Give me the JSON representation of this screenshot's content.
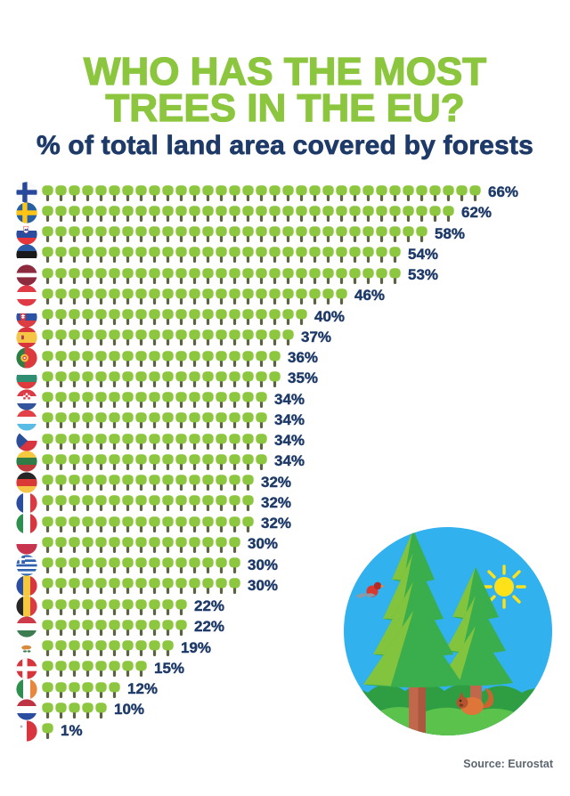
{
  "title": {
    "line1": "WHO HAS THE MOST",
    "line2": "TREES IN THE EU?"
  },
  "subtitle": "% of total land area covered by forests",
  "source": "Source: Eurostat",
  "colors": {
    "green": "#8CC63E",
    "navy": "#1E3A68",
    "tree_canopy": "#8DC63F",
    "tree_trunk": "#5D6243",
    "sky": "#31B1EE",
    "fir_green": "#3AAE4C",
    "fir_light": "#8CC63E",
    "trunk_brown": "#C1684C",
    "trunk_brown_dark": "#AC5740",
    "bush_green": "#2F9E43",
    "grass_green": "#5BC24C",
    "sun_yellow": "#FFE11A",
    "bird_red": "#D93A2F",
    "squirrel_orange": "#DD7638"
  },
  "chart_data": {
    "type": "pictogram-bar",
    "title": "WHO HAS THE MOST TREES IN THE EU?",
    "subtitle": "% of total land area covered by forests",
    "unit": "%",
    "percent_per_tree_icon": 2,
    "source": "Source: Eurostat",
    "categories": [
      "Finland",
      "Sweden",
      "Slovenia",
      "Estonia",
      "Latvia",
      "Austria",
      "Slovakia",
      "Spain",
      "Portugal",
      "Bulgaria",
      "Croatia",
      "Luxembourg",
      "Czechia",
      "Lithuania",
      "Germany",
      "France",
      "Italy",
      "Poland",
      "Greece",
      "Romania",
      "Belgium",
      "Hungary",
      "Cyprus",
      "Denmark",
      "Ireland",
      "Netherlands",
      "Malta"
    ],
    "values": [
      66,
      62,
      58,
      54,
      53,
      46,
      40,
      37,
      36,
      35,
      34,
      34,
      34,
      34,
      32,
      32,
      32,
      30,
      30,
      30,
      22,
      22,
      19,
      15,
      12,
      10,
      1
    ]
  },
  "countries": [
    {
      "name": "Finland",
      "value": 66,
      "flag_icon": "flag-finland-icon",
      "flag": {
        "pattern": "nordic",
        "colors": [
          "#F7F9FB",
          "#27489C"
        ]
      }
    },
    {
      "name": "Sweden",
      "value": 62,
      "flag_icon": "flag-sweden-icon",
      "flag": {
        "pattern": "nordic",
        "colors": [
          "#2660A4",
          "#FEC514"
        ]
      }
    },
    {
      "name": "Slovenia",
      "value": 58,
      "flag_icon": "flag-slovenia-icon",
      "flag": {
        "pattern": "h",
        "colors": [
          "#FFFFFF",
          "#2A4DA0",
          "#E8343B"
        ],
        "emblem": "slovenia-shield"
      }
    },
    {
      "name": "Estonia",
      "value": 54,
      "flag_icon": "flag-estonia-icon",
      "flag": {
        "pattern": "h",
        "colors": [
          "#2C5BA8",
          "#1A1A1A",
          "#FFFFFF"
        ]
      }
    },
    {
      "name": "Latvia",
      "value": 53,
      "flag_icon": "flag-latvia-icon",
      "flag": {
        "pattern": "h",
        "colors": [
          "#8E2A3E",
          "#FFFFFF",
          "#8E2A3E"
        ],
        "ratios": [
          2,
          1,
          2
        ]
      }
    },
    {
      "name": "Austria",
      "value": 46,
      "flag_icon": "flag-austria-icon",
      "flag": {
        "pattern": "h",
        "colors": [
          "#E03A46",
          "#FFFFFF",
          "#E03A46"
        ]
      }
    },
    {
      "name": "Slovakia",
      "value": 40,
      "flag_icon": "flag-slovakia-icon",
      "flag": {
        "pattern": "h",
        "colors": [
          "#FFFFFF",
          "#2C52A5",
          "#DC3D43"
        ],
        "emblem": "slovakia-shield"
      }
    },
    {
      "name": "Spain",
      "value": 37,
      "flag_icon": "flag-spain-icon",
      "flag": {
        "pattern": "h",
        "colors": [
          "#D8343C",
          "#F6C544",
          "#D8343C"
        ],
        "ratios": [
          1,
          2,
          1
        ],
        "emblem": "spain-crest"
      }
    },
    {
      "name": "Portugal",
      "value": 36,
      "flag_icon": "flag-portugal-icon",
      "flag": {
        "pattern": "v",
        "colors": [
          "#2E7D46",
          "#DC3A3C"
        ],
        "ratios": [
          2,
          3
        ],
        "emblem": "portugal-sphere"
      }
    },
    {
      "name": "Bulgaria",
      "value": 35,
      "flag_icon": "flag-bulgaria-icon",
      "flag": {
        "pattern": "h",
        "colors": [
          "#FFFFFF",
          "#2F8E72",
          "#DC3A3C"
        ]
      }
    },
    {
      "name": "Croatia",
      "value": 34,
      "flag_icon": "flag-croatia-icon",
      "flag": {
        "pattern": "h",
        "colors": [
          "#DC3A45",
          "#FFFFFF",
          "#31549C"
        ],
        "emblem": "croatia-checker"
      }
    },
    {
      "name": "Luxembourg",
      "value": 34,
      "flag_icon": "flag-luxembourg-icon",
      "flag": {
        "pattern": "h",
        "colors": [
          "#E34148",
          "#FFFFFF",
          "#59BCE4"
        ]
      }
    },
    {
      "name": "Czechia",
      "value": 34,
      "flag_icon": "flag-czechia-icon",
      "flag": {
        "pattern": "h",
        "colors": [
          "#FFFFFF",
          "#D8353F"
        ],
        "emblem": "czech-wedge"
      }
    },
    {
      "name": "Lithuania",
      "value": 34,
      "flag_icon": "flag-lithuania-icon",
      "flag": {
        "pattern": "h",
        "colors": [
          "#F4C83F",
          "#2E7D46",
          "#C03A3C"
        ]
      }
    },
    {
      "name": "Germany",
      "value": 32,
      "flag_icon": "flag-germany-icon",
      "flag": {
        "pattern": "h",
        "colors": [
          "#262626",
          "#D93A35",
          "#F6C545"
        ]
      }
    },
    {
      "name": "France",
      "value": 32,
      "flag_icon": "flag-france-icon",
      "flag": {
        "pattern": "v",
        "colors": [
          "#2A4DA0",
          "#FFFFFF",
          "#DC3A43"
        ]
      }
    },
    {
      "name": "Italy",
      "value": 32,
      "flag_icon": "flag-italy-icon",
      "flag": {
        "pattern": "v",
        "colors": [
          "#2E8F4E",
          "#FFFFFF",
          "#D8353F"
        ]
      }
    },
    {
      "name": "Poland",
      "value": 30,
      "flag_icon": "flag-poland-icon",
      "flag": {
        "pattern": "h",
        "colors": [
          "#FFFFFF",
          "#C8344E"
        ]
      }
    },
    {
      "name": "Greece",
      "value": 30,
      "flag_icon": "flag-greece-icon",
      "flag": {
        "pattern": "greece",
        "colors": [
          "#2E62AE",
          "#FFFFFF"
        ]
      }
    },
    {
      "name": "Romania",
      "value": 30,
      "flag_icon": "flag-romania-icon",
      "flag": {
        "pattern": "v",
        "colors": [
          "#2A4DA0",
          "#F4C83F",
          "#D8353F"
        ]
      }
    },
    {
      "name": "Belgium",
      "value": 22,
      "flag_icon": "flag-belgium-icon",
      "flag": {
        "pattern": "v",
        "colors": [
          "#262626",
          "#F4C83F",
          "#DC3A43"
        ]
      }
    },
    {
      "name": "Hungary",
      "value": 22,
      "flag_icon": "flag-hungary-icon",
      "flag": {
        "pattern": "h",
        "colors": [
          "#CE3A4A",
          "#FFFFFF",
          "#3E7D52"
        ]
      }
    },
    {
      "name": "Cyprus",
      "value": 19,
      "flag_icon": "flag-cyprus-icon",
      "flag": {
        "pattern": "h",
        "colors": [
          "#FFFFFF"
        ],
        "emblem": "cyprus-island"
      }
    },
    {
      "name": "Denmark",
      "value": 15,
      "flag_icon": "flag-denmark-icon",
      "flag": {
        "pattern": "nordic",
        "colors": [
          "#D8343C",
          "#FFFFFF"
        ]
      }
    },
    {
      "name": "Ireland",
      "value": 12,
      "flag_icon": "flag-ireland-icon",
      "flag": {
        "pattern": "v",
        "colors": [
          "#2E8F4E",
          "#FFFFFF",
          "#E8883E"
        ]
      }
    },
    {
      "name": "Netherlands",
      "value": 10,
      "flag_icon": "flag-netherlands-icon",
      "flag": {
        "pattern": "h",
        "colors": [
          "#BE3442",
          "#FFFFFF",
          "#2A4DA0"
        ]
      }
    },
    {
      "name": "Malta",
      "value": 1,
      "flag_icon": "flag-malta-icon",
      "flag": {
        "pattern": "v",
        "colors": [
          "#FFFFFF",
          "#D8353F"
        ],
        "emblem": "malta-cross"
      }
    }
  ]
}
